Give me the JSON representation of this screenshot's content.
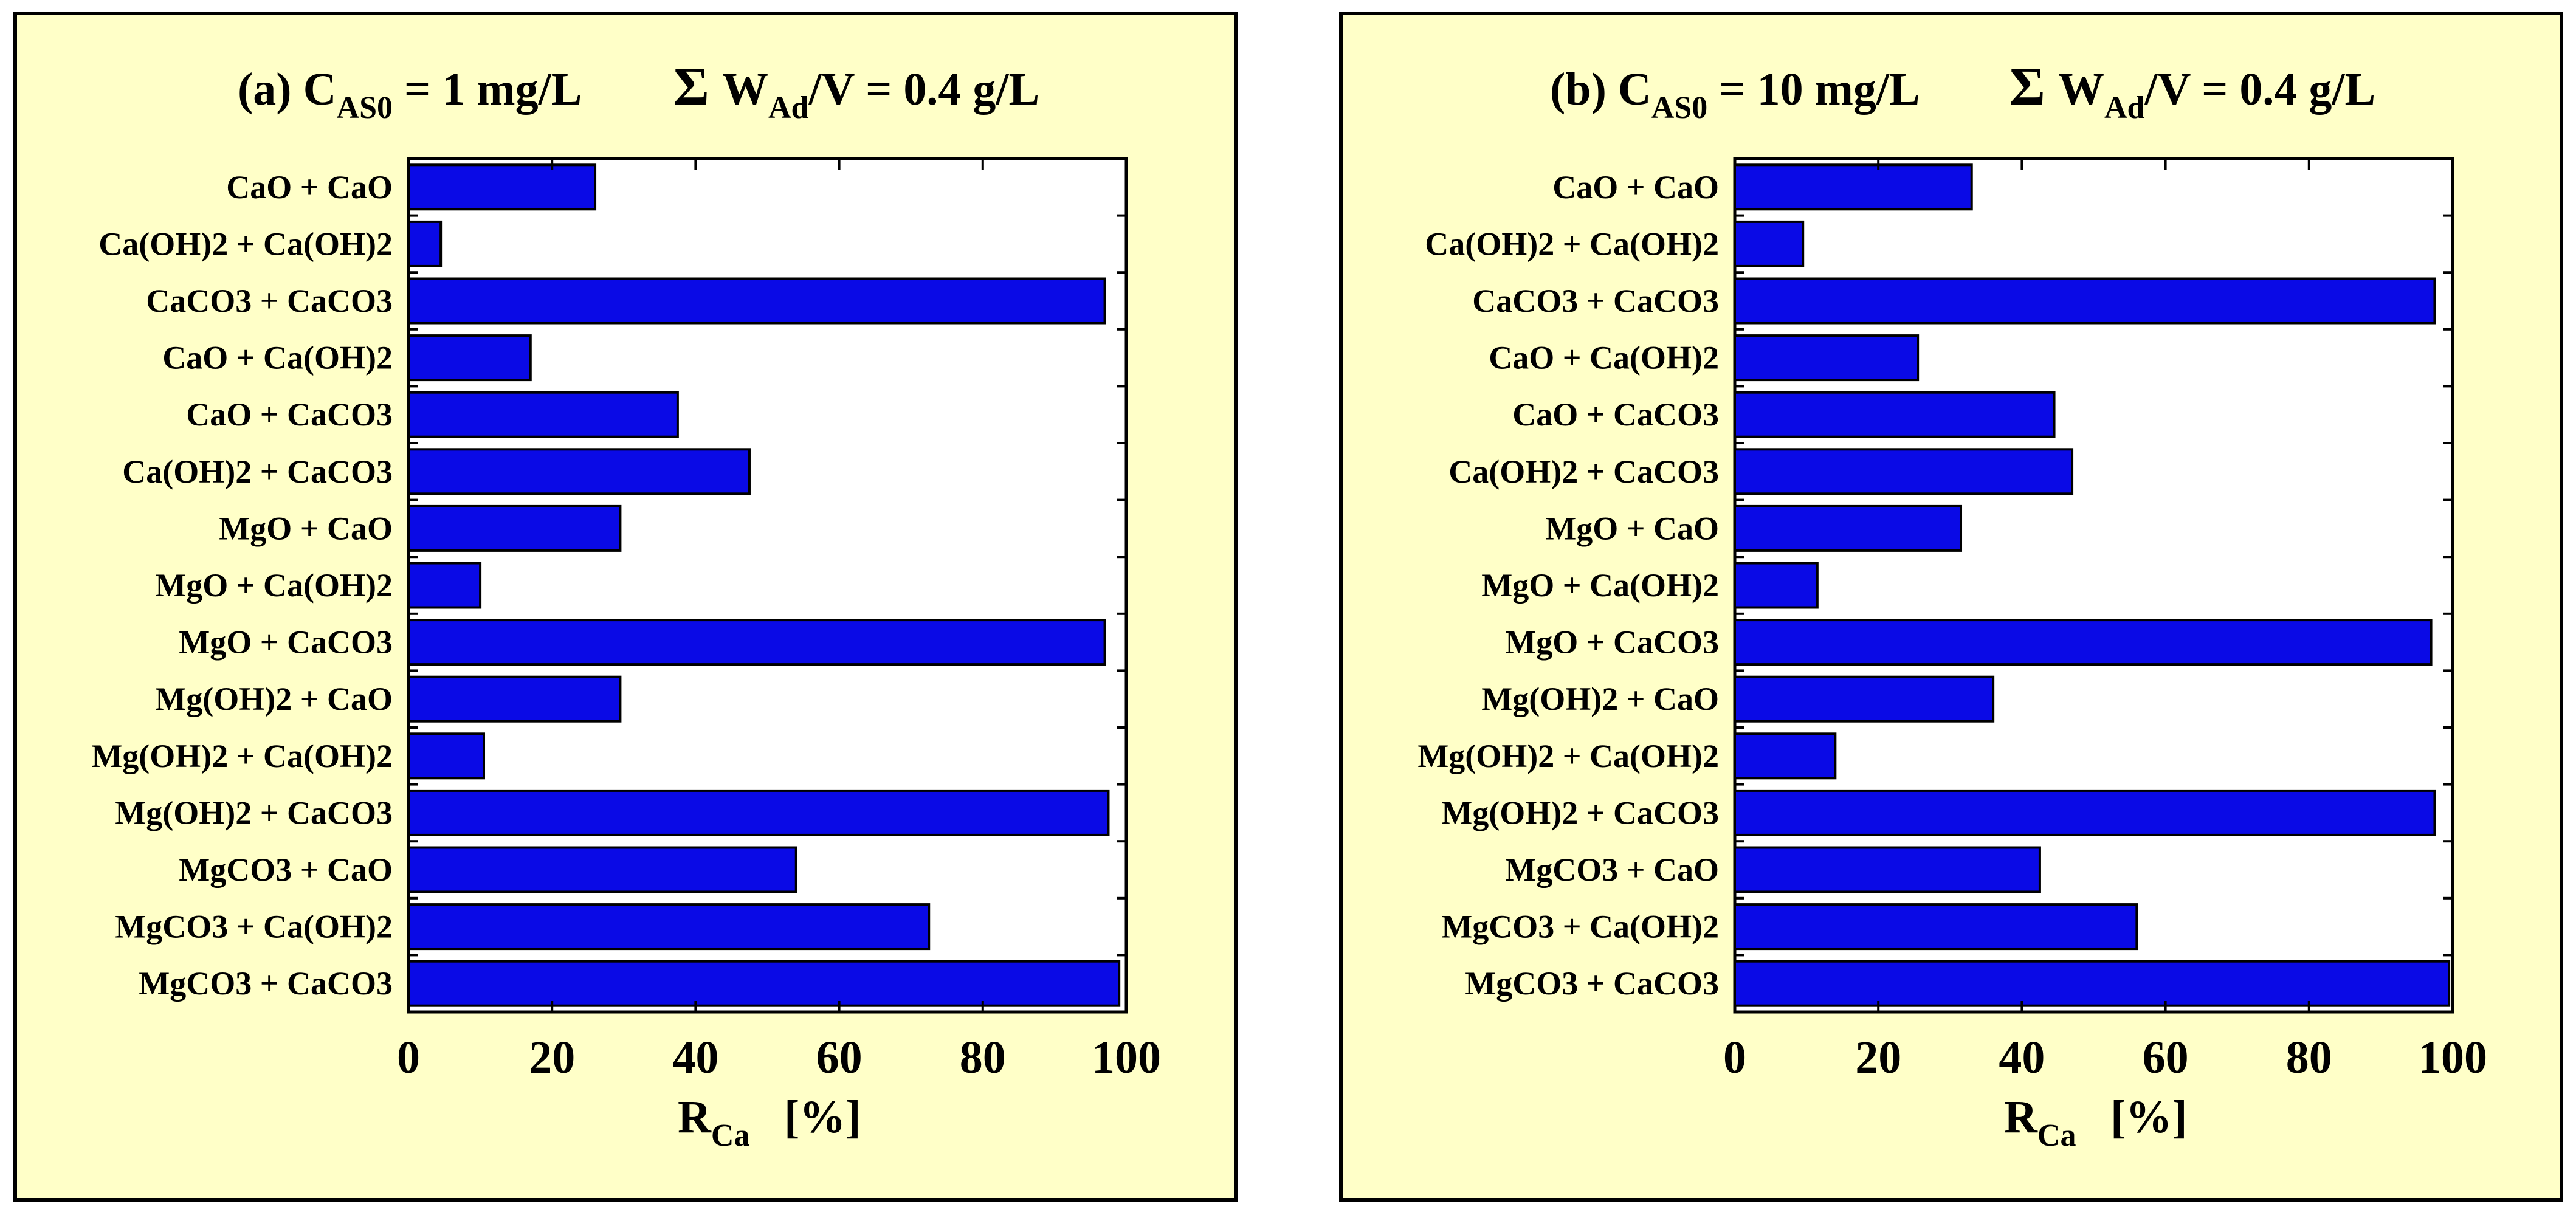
{
  "colors": {
    "panel_bg": "#FFFFC8",
    "bar_fill": "#0A0AE6",
    "plot_bg": "#FFFFFF",
    "text": "#000000"
  },
  "chart_data": [
    {
      "type": "bar",
      "orientation": "horizontal",
      "title": {
        "prefix": "(a) C",
        "sub1": "AS0",
        "mid": " = 1 mg/L",
        "sigma": "Σ",
        "w": "W",
        "sub2": "Ad",
        "end": "/V =  0.4 g/L"
      },
      "xlabel": {
        "main": "R",
        "sub": "Ca",
        "unit": "[%]"
      },
      "xlim": [
        0,
        100
      ],
      "xticks": [
        "0",
        "20",
        "40",
        "60",
        "80",
        "100"
      ],
      "xtick_values": [
        0,
        20,
        40,
        60,
        80,
        100
      ],
      "categories": [
        "CaO + CaO",
        "Ca(OH)2 + Ca(OH)2",
        "CaCO3 + CaCO3",
        "CaO + Ca(OH)2",
        "CaO + CaCO3",
        "Ca(OH)2 + CaCO3",
        "MgO + CaO",
        "MgO + Ca(OH)2",
        "MgO + CaCO3",
        "Mg(OH)2 + CaO",
        "Mg(OH)2 + Ca(OH)2",
        "Mg(OH)2 + CaCO3",
        "MgCO3 + CaO",
        "MgCO3 + Ca(OH)2",
        "MgCO3 + CaCO3"
      ],
      "values": [
        26,
        4.5,
        97,
        17,
        37.5,
        47.5,
        29.5,
        10,
        97,
        29.5,
        10.5,
        97.5,
        54,
        72.5,
        99
      ]
    },
    {
      "type": "bar",
      "orientation": "horizontal",
      "title": {
        "prefix": "(b) C",
        "sub1": "AS0",
        "mid": " = 10 mg/L",
        "sigma": "Σ",
        "w": "W",
        "sub2": "Ad",
        "end": "/V =  0.4 g/L"
      },
      "xlabel": {
        "main": "R",
        "sub": "Ca",
        "unit": "[%]"
      },
      "xlim": [
        0,
        100
      ],
      "xticks": [
        "0",
        "20",
        "40",
        "60",
        "80",
        "100"
      ],
      "xtick_values": [
        0,
        20,
        40,
        60,
        80,
        100
      ],
      "categories": [
        "CaO + CaO",
        "Ca(OH)2 + Ca(OH)2",
        "CaCO3 + CaCO3",
        "CaO + Ca(OH)2",
        "CaO + CaCO3",
        "Ca(OH)2 + CaCO3",
        "MgO + CaO",
        "MgO + Ca(OH)2",
        "MgO + CaCO3",
        "Mg(OH)2 + CaO",
        "Mg(OH)2 + Ca(OH)2",
        "Mg(OH)2 + CaCO3",
        "MgCO3 + CaO",
        "MgCO3 + Ca(OH)2",
        "MgCO3 + CaCO3"
      ],
      "values": [
        33,
        9.5,
        97.5,
        25.5,
        44.5,
        47,
        31.5,
        11.5,
        97,
        36,
        14,
        97.5,
        42.5,
        56,
        99.5
      ]
    }
  ]
}
